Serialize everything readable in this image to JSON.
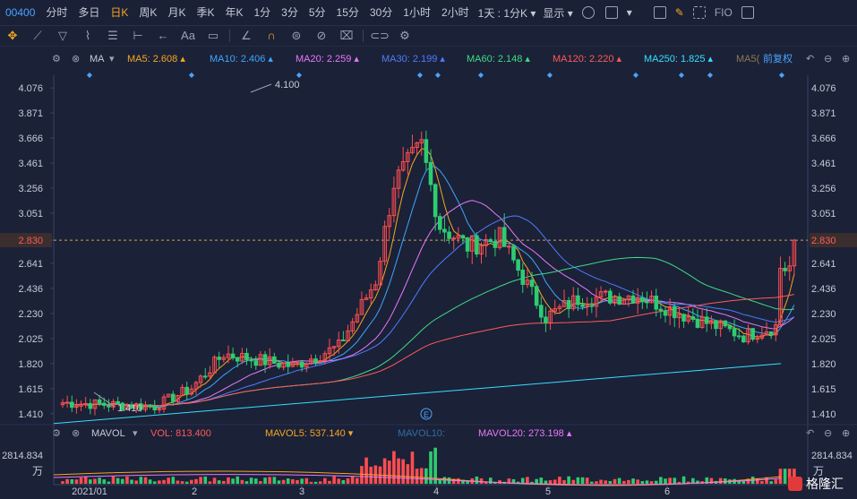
{
  "header": {
    "code": "00400",
    "periods": [
      "分时",
      "多日",
      "日K",
      "周K",
      "月K",
      "季K",
      "年K",
      "1分",
      "3分",
      "5分",
      "15分",
      "30分",
      "1小时",
      "2小时"
    ],
    "active_period": "日K",
    "dropdown1": "1天 : 1分K",
    "display_label": "显示",
    "fio_label": "FIO"
  },
  "ma_legend": {
    "label": "MA",
    "ma5": "MA5: 2.608",
    "ma10": "MA10: 2.406",
    "ma20": "MA20: 2.259",
    "ma30": "MA30: 2.199",
    "ma60": "MA60: 2.148",
    "ma120": "MA120: 2.220",
    "ma250": "MA250: 1.825",
    "ma_cut": "MA5(",
    "adjust": "前复权",
    "colors": {
      "ma5": "#f5a623",
      "ma10": "#3ea6ff",
      "ma20": "#e879f9",
      "ma30": "#4f7cff",
      "ma60": "#3ddc84",
      "ma120": "#ff5a5a",
      "ma250": "#35e0ff"
    }
  },
  "vol_legend": {
    "label": "MAVOL",
    "vol": "VOL: 813.400",
    "mavol5": "MAVOL5: 537.140",
    "mavol10": "MAVOL10:",
    "mavol20": "MAVOL20: 273.198"
  },
  "chart_data": {
    "type": "candlestick",
    "price_ticks": [
      "4.076",
      "3.871",
      "3.666",
      "3.461",
      "3.256",
      "3.051",
      "2.830",
      "2.641",
      "2.436",
      "2.230",
      "2.025",
      "1.820",
      "1.615",
      "1.410"
    ],
    "current_price": "2.830",
    "annotation_high": "4.100",
    "annotation_low": "1.410",
    "vol_top_tick": "2814.834",
    "vol_unit": "万",
    "x_labels": [
      "2021/01",
      "2",
      "3",
      "4",
      "5",
      "6"
    ],
    "e_marker": "E",
    "ylim": [
      1.35,
      4.18
    ]
  },
  "watermark": "格隆汇"
}
